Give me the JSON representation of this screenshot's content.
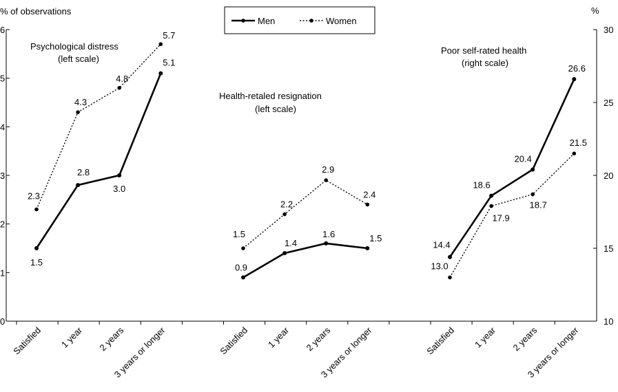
{
  "chart_data": {
    "type": "line",
    "left_axis": {
      "title": "% of observations",
      "min": 0,
      "max": 6,
      "ticks": [
        0,
        1,
        2,
        3,
        4,
        5,
        6
      ]
    },
    "right_axis": {
      "title": "%",
      "min": 10,
      "max": 30,
      "ticks": [
        10,
        15,
        20,
        25,
        30
      ]
    },
    "legend": {
      "position": "top-center",
      "items": [
        {
          "name": "Men",
          "style": "solid"
        },
        {
          "name": "Women",
          "style": "dotted"
        }
      ]
    },
    "categories": [
      "Satisfied",
      "1 year",
      "2 years",
      "3 years or longer"
    ],
    "panels": [
      {
        "title": "Psychological distress",
        "subtitle": "(left scale)",
        "axis": "left",
        "series": [
          {
            "name": "Men",
            "values": [
              1.5,
              2.8,
              3.0,
              5.1
            ],
            "labels": [
              "1.5",
              "2.8",
              "3.0",
              "5.1"
            ]
          },
          {
            "name": "Women",
            "values": [
              2.3,
              4.3,
              4.8,
              5.7
            ],
            "labels": [
              "2.3",
              "4.3",
              "4.8",
              "5.7"
            ]
          }
        ]
      },
      {
        "title": "Health-retaled resignation",
        "subtitle": "(left scale)",
        "axis": "left",
        "series": [
          {
            "name": "Men",
            "values": [
              0.9,
              1.4,
              1.6,
              1.5
            ],
            "labels": [
              "0.9",
              "1.4",
              "1.6",
              "1.5"
            ]
          },
          {
            "name": "Women",
            "values": [
              1.5,
              2.2,
              2.9,
              2.4
            ],
            "labels": [
              "1.5",
              "2.2",
              "2.9",
              "2.4"
            ]
          }
        ]
      },
      {
        "title": "Poor self-rated health",
        "subtitle": "(right scale)",
        "axis": "right",
        "series": [
          {
            "name": "Men",
            "values": [
              14.4,
              18.6,
              20.4,
              26.6
            ],
            "labels": [
              "14.4",
              "18.6",
              "20.4",
              "26.6"
            ]
          },
          {
            "name": "Women",
            "values": [
              13.0,
              17.9,
              18.7,
              21.5
            ],
            "labels": [
              "13.0",
              "17.9",
              "18.7",
              "21.5"
            ]
          }
        ]
      }
    ]
  }
}
